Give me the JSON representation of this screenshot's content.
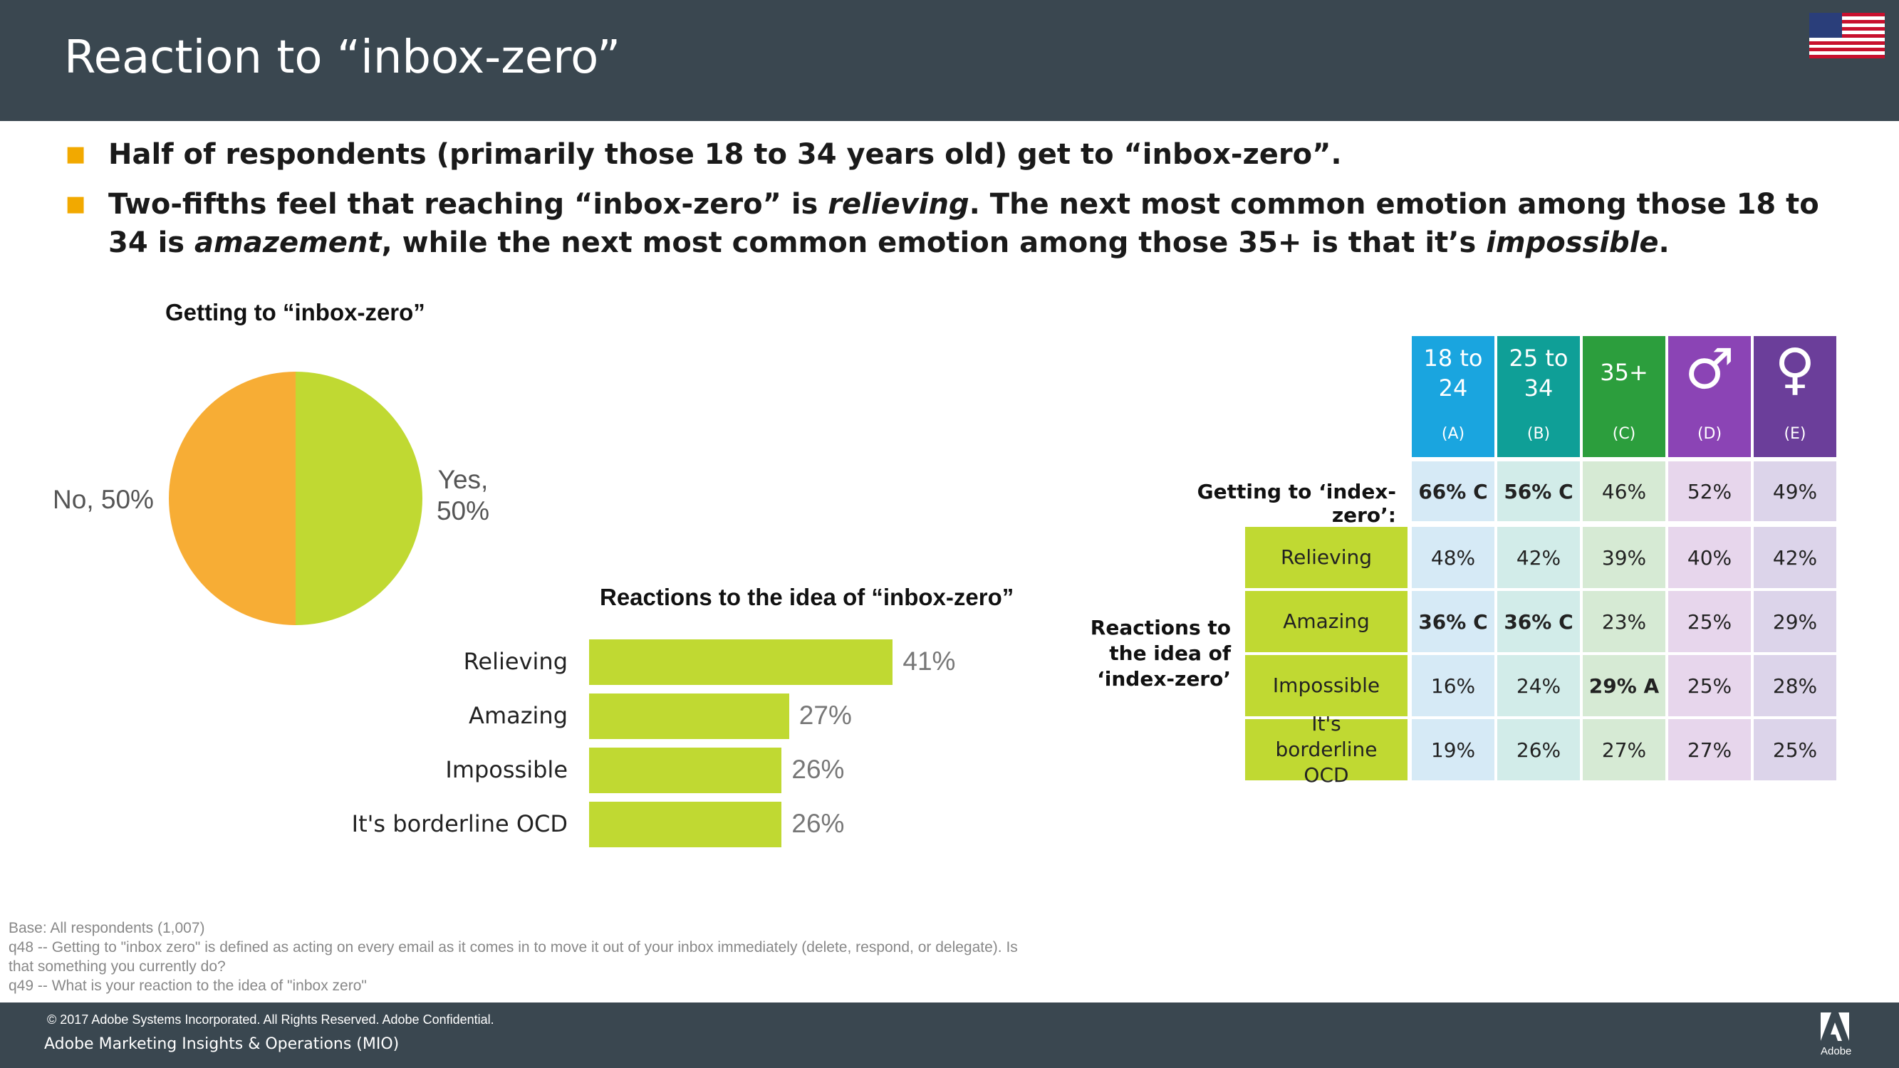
{
  "header": {
    "title": "Reaction to “inbox-zero”"
  },
  "bullets": [
    {
      "text": "Half of respondents (primarily those 18 to 34 years old) get to “inbox-zero”."
    },
    {
      "pre": "Two-fifths feel that reaching “inbox-zero” is ",
      "em1": "relieving",
      "mid": ". The next most common emotion among those 18 to 34 is ",
      "em2": "amazement",
      "mid2": ", while the next most common emotion among those 35+ is that it’s ",
      "em3": "impossible",
      "post": "."
    }
  ],
  "chart_data": [
    {
      "type": "pie",
      "title": "Getting to “inbox-zero”",
      "labels": [
        "Yes",
        "No"
      ],
      "values": [
        50,
        50
      ],
      "label_text": [
        "Yes, 50%",
        "No, 50%"
      ],
      "colors": [
        "#c0d932",
        "#f7ad35"
      ]
    },
    {
      "type": "bar",
      "orientation": "horizontal",
      "title": "Reactions to the idea of “inbox-zero”",
      "categories": [
        "Relieving",
        "Amazing",
        "Impossible",
        "It's borderline OCD"
      ],
      "values": [
        41,
        27,
        26,
        26
      ],
      "value_labels": [
        "41%",
        "27%",
        "26%",
        "26%"
      ],
      "color": "#c0d932"
    },
    {
      "type": "table",
      "columns": [
        {
          "label": "18 to 24",
          "code": "(A)",
          "color": "#1aa5df"
        },
        {
          "label": "25 to 34",
          "code": "(B)",
          "color": "#0f9f97"
        },
        {
          "label": "35+",
          "code": "(C)",
          "color": "#2c9e3d"
        },
        {
          "label": "♂",
          "code": "(D)",
          "color": "#8b44b5"
        },
        {
          "label": "♀",
          "code": "(E)",
          "color": "#6b3e9a"
        }
      ],
      "getting_row": {
        "label": "Getting to ‘index-zero’:",
        "values": [
          "66% C",
          "56% C",
          "46%",
          "52%",
          "49%"
        ]
      },
      "reactions_group_label": "Reactions to the idea of ‘index-zero’",
      "reaction_rows": [
        {
          "label": "Relieving",
          "values": [
            "48%",
            "42%",
            "39%",
            "40%",
            "42%"
          ]
        },
        {
          "label": "Amazing",
          "values": [
            "36% C",
            "36% C",
            "23%",
            "25%",
            "29%"
          ]
        },
        {
          "label": "Impossible",
          "values": [
            "16%",
            "24%",
            "29% A",
            "25%",
            "28%"
          ]
        },
        {
          "label": "It's borderline OCD",
          "values": [
            "19%",
            "26%",
            "27%",
            "27%",
            "25%"
          ]
        }
      ]
    }
  ],
  "footnotes": [
    "Base: All respondents (1,007)",
    "q48 -- Getting to \"inbox zero\" is defined as acting on every email as it comes in to move it out of your inbox immediately (delete, respond, or delegate). Is that something you currently do?",
    "q49 -- What is your reaction to the idea of \"inbox zero\""
  ],
  "footer": {
    "copyright": "© 2017 Adobe Systems Incorporated.  All Rights Reserved.  Adobe Confidential.",
    "org": "Adobe Marketing Insights & Operations (MIO)",
    "logo_text": "Adobe"
  }
}
